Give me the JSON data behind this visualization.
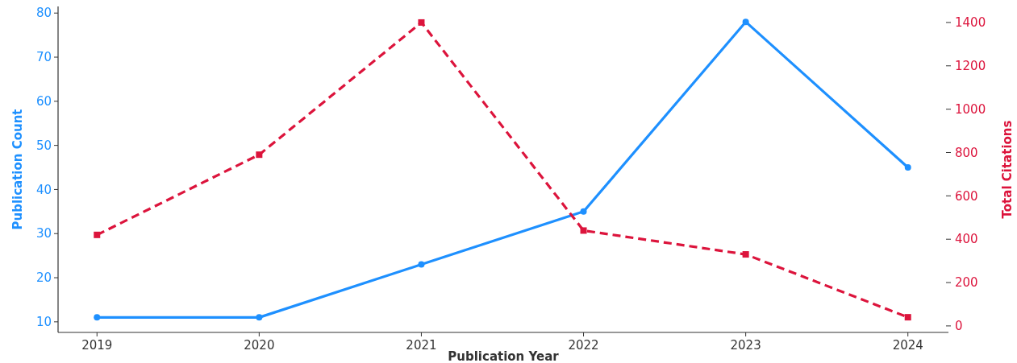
{
  "chart_data": {
    "type": "line",
    "xlabel": "Publication Year",
    "ylabel": "Publication Count",
    "y2label": "Total Citations",
    "x": [
      2019,
      2020,
      2021,
      2022,
      2023,
      2024
    ],
    "xlim": [
      2018.76,
      2024.25
    ],
    "xticks": [
      2019,
      2020,
      2021,
      2022,
      2023,
      2024
    ],
    "ylim": [
      7.6,
      81.5
    ],
    "yticks": [
      10,
      20,
      30,
      40,
      50,
      60,
      70,
      80
    ],
    "y2lim": [
      -30,
      1474
    ],
    "y2ticks": [
      0,
      200,
      400,
      600,
      800,
      1000,
      1200,
      1400
    ],
    "grid": false,
    "legend": false,
    "series": [
      {
        "color": "#1e90ff",
        "values": [
          11,
          11,
          23,
          35,
          78,
          45
        ],
        "marker": "circle",
        "line_style": "solid"
      },
      {
        "color": "#dc143c",
        "values": [
          420,
          790,
          1400,
          440,
          330,
          40
        ],
        "axis": "y2",
        "marker": "square",
        "line_style": "dashed"
      }
    ]
  }
}
